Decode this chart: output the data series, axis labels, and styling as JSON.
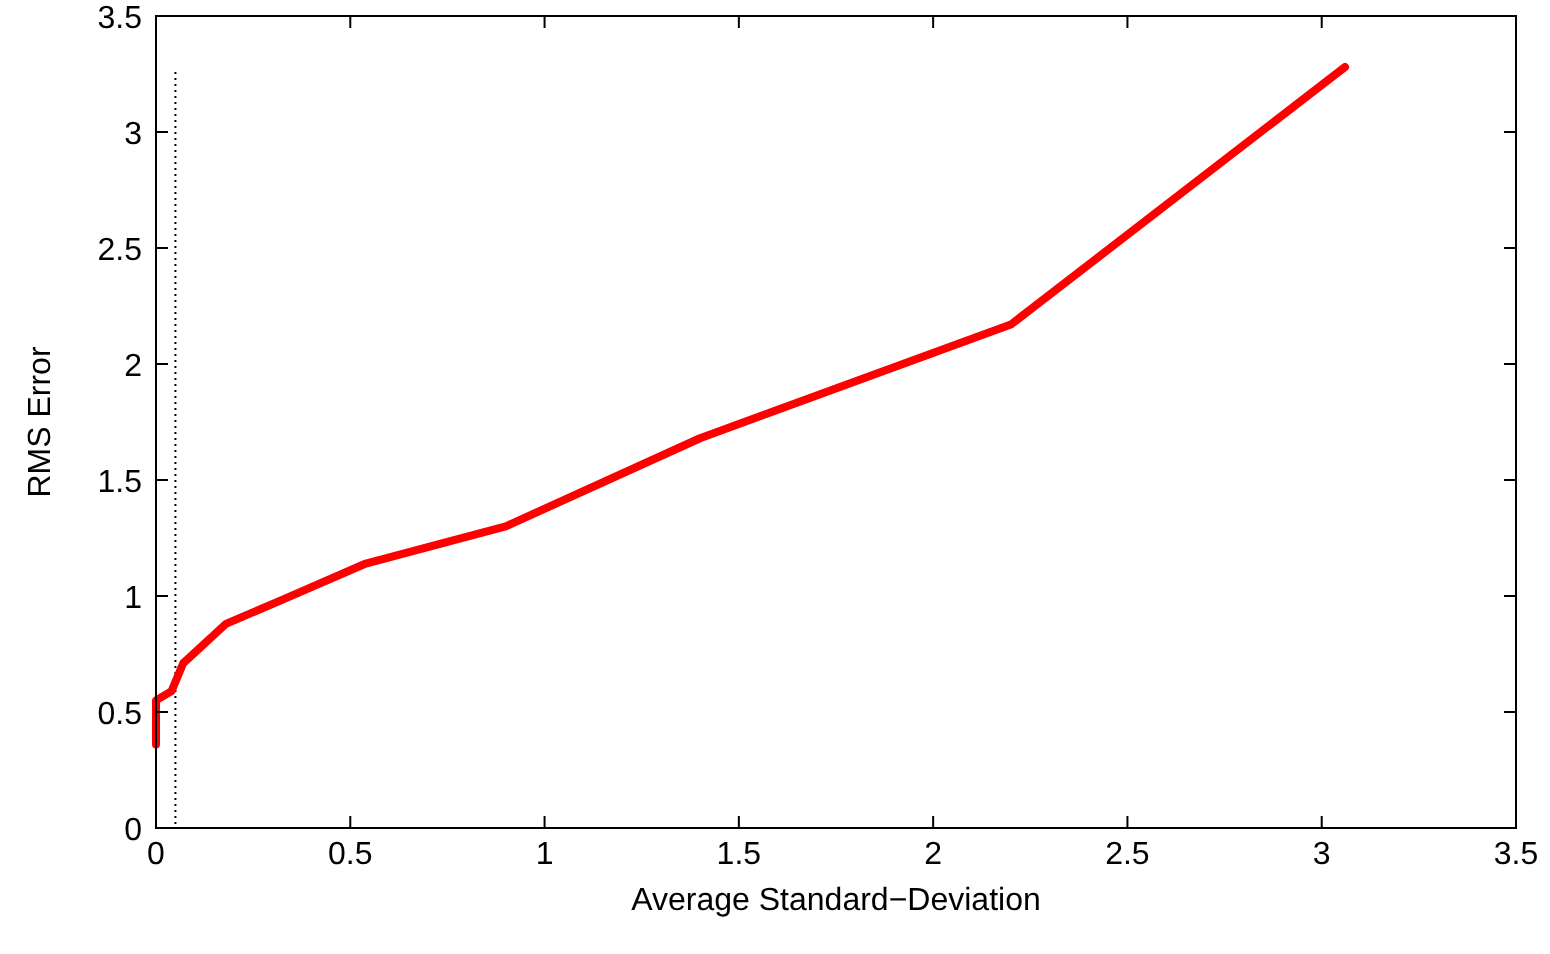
{
  "chart_data": {
    "type": "line",
    "xlabel": "Average Standard−Deviation",
    "ylabel": "RMS Error",
    "x": [
      0.0,
      0.0,
      0.04,
      0.07,
      0.18,
      0.32,
      0.54,
      0.9,
      1.4,
      2.2,
      3.06
    ],
    "series": [
      {
        "color": "#ff0000",
        "values": [
          0.36,
          0.55,
          0.59,
          0.71,
          0.88,
          0.98,
          1.14,
          1.3,
          1.68,
          2.17,
          3.28
        ]
      }
    ],
    "xlim": [
      0,
      3.5
    ],
    "xticks": [
      0,
      0.5,
      1,
      1.5,
      2,
      2.5,
      3,
      3.5
    ],
    "ylim": [
      0,
      3.5
    ],
    "yticks": [
      0,
      0.5,
      1,
      1.5,
      2,
      2.5,
      3,
      3.5
    ],
    "ref_lines": [
      {
        "axis": "x",
        "value": 0.05,
        "line_style": "dotted",
        "color": "#000000"
      }
    ],
    "grid": false,
    "marker": "none",
    "line_style": "solid"
  }
}
